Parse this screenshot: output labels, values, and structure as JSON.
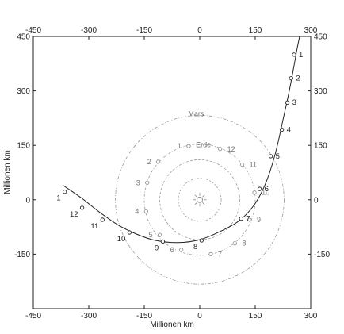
{
  "chart_data": {
    "type": "scatter",
    "xlabel": "Millionen km",
    "ylabel": "Millionen km",
    "xlim": [
      -450,
      300
    ],
    "ylim": [
      -300,
      450
    ],
    "xticks": [
      -450,
      -300,
      -150,
      0,
      150,
      300
    ],
    "yticks_left": [
      450,
      300,
      150,
      0,
      -150
    ],
    "yticks_right": [
      450,
      300,
      150,
      0,
      -150
    ],
    "grid": false,
    "orbits": [
      {
        "name": "Mars",
        "radius": 228
      },
      {
        "name": "Erde",
        "radius": 150
      },
      {
        "name": "",
        "radius": 108
      },
      {
        "name": "",
        "radius": 58
      }
    ],
    "sun": {
      "x": 0,
      "y": 0
    },
    "trajectory": [
      [
        -370,
        40
      ],
      [
        -320,
        5
      ],
      [
        -270,
        -35
      ],
      [
        -220,
        -70
      ],
      [
        -170,
        -95
      ],
      [
        -120,
        -112
      ],
      [
        -60,
        -118
      ],
      [
        0,
        -110
      ],
      [
        60,
        -85
      ],
      [
        110,
        -55
      ],
      [
        150,
        -10
      ],
      [
        180,
        50
      ],
      [
        205,
        130
      ],
      [
        225,
        220
      ],
      [
        242,
        300
      ],
      [
        255,
        370
      ],
      [
        262,
        410
      ],
      [
        270,
        450
      ]
    ],
    "comet_positions": [
      {
        "label": "1",
        "x": -365,
        "y": 22
      },
      {
        "label": "12",
        "x": -318,
        "y": -22
      },
      {
        "label": "11",
        "x": -263,
        "y": -55
      },
      {
        "label": "10",
        "x": -190,
        "y": -90
      },
      {
        "label": "9",
        "x": -100,
        "y": -115
      },
      {
        "label": "8",
        "x": 5,
        "y": -112
      },
      {
        "label": "7",
        "x": 112,
        "y": -52
      },
      {
        "label": "6",
        "x": 162,
        "y": 30
      },
      {
        "label": "5",
        "x": 192,
        "y": 120
      },
      {
        "label": "4",
        "x": 222,
        "y": 193
      },
      {
        "label": "3",
        "x": 237,
        "y": 268
      },
      {
        "label": "2",
        "x": 247,
        "y": 335
      },
      {
        "label": "1",
        "x": 255,
        "y": 400
      }
    ],
    "earth_positions": [
      {
        "label": "1",
        "x": -30,
        "y": 148
      },
      {
        "label": "2",
        "x": -112,
        "y": 105
      },
      {
        "label": "3",
        "x": -142,
        "y": 47
      },
      {
        "label": "4",
        "x": -145,
        "y": -32
      },
      {
        "label": "5",
        "x": -108,
        "y": -97
      },
      {
        "label": "6",
        "x": -50,
        "y": -138
      },
      {
        "label": "7",
        "x": 30,
        "y": -150
      },
      {
        "label": "8",
        "x": 95,
        "y": -120
      },
      {
        "label": "9",
        "x": 135,
        "y": -55
      },
      {
        "label": "10",
        "x": 148,
        "y": 20
      },
      {
        "label": "11",
        "x": 115,
        "y": 97
      },
      {
        "label": "12",
        "x": 55,
        "y": 140
      }
    ],
    "annotations": [
      {
        "text": "Mars",
        "x": -10,
        "y": 230
      },
      {
        "text": "Erde",
        "x": 10,
        "y": 145
      }
    ]
  }
}
